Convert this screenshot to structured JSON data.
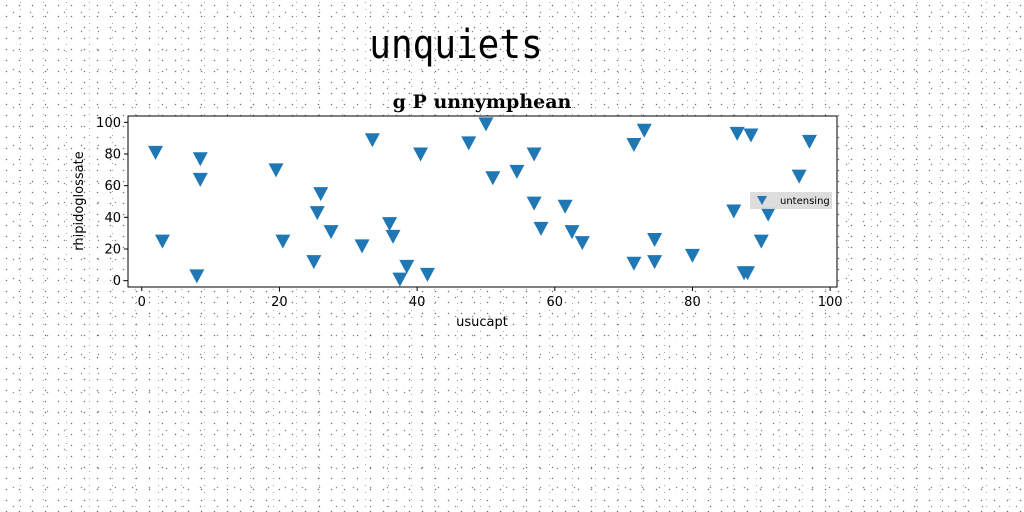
{
  "page": {
    "title": "unquiets"
  },
  "chart_data": {
    "type": "scatter",
    "title": "g P unnymphean",
    "xlabel": "usucapt",
    "ylabel": "rhipidoglossate",
    "xlim": [
      -2,
      101
    ],
    "ylim": [
      -4,
      104
    ],
    "xticks": [
      0,
      20,
      40,
      60,
      80,
      100
    ],
    "yticks": [
      0,
      20,
      40,
      60,
      80,
      100
    ],
    "grid": false,
    "legend_position": "right",
    "marker": "triangle-down",
    "series": [
      {
        "name": "untensing",
        "color": "#1f77b4",
        "points": [
          [
            2,
            81
          ],
          [
            3,
            25
          ],
          [
            8,
            3
          ],
          [
            8.5,
            77
          ],
          [
            8.5,
            64
          ],
          [
            19.5,
            70
          ],
          [
            20.5,
            25
          ],
          [
            25,
            12
          ],
          [
            25.5,
            43
          ],
          [
            26,
            55
          ],
          [
            27.5,
            31
          ],
          [
            32,
            22
          ],
          [
            33.5,
            89
          ],
          [
            36,
            36
          ],
          [
            36.5,
            28
          ],
          [
            37.5,
            1
          ],
          [
            38.5,
            9
          ],
          [
            40.5,
            80
          ],
          [
            41.5,
            4
          ],
          [
            47.5,
            87
          ],
          [
            50,
            99
          ],
          [
            51,
            65
          ],
          [
            54.5,
            69
          ],
          [
            57,
            80
          ],
          [
            57,
            49
          ],
          [
            58,
            33
          ],
          [
            61.5,
            47
          ],
          [
            62.5,
            31
          ],
          [
            64,
            24
          ],
          [
            71.5,
            11
          ],
          [
            71.5,
            86
          ],
          [
            73,
            95
          ],
          [
            74.5,
            26
          ],
          [
            74.5,
            12
          ],
          [
            80,
            16
          ],
          [
            86,
            44
          ],
          [
            86.5,
            93
          ],
          [
            87.5,
            5
          ],
          [
            88,
            5
          ],
          [
            88.5,
            92
          ],
          [
            90,
            25
          ],
          [
            91,
            42
          ],
          [
            95.5,
            66
          ],
          [
            97,
            88
          ]
        ]
      }
    ]
  }
}
